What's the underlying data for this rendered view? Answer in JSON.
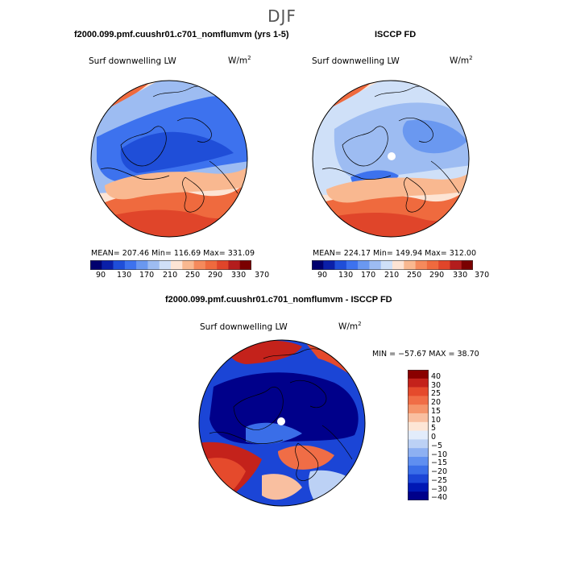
{
  "page": {
    "season": "DJF"
  },
  "panels": [
    {
      "id": "model",
      "title": "f2000.099.pmf.cuushr01.c701_nomflumvm (yrs 1-5)",
      "field": "Surf downwelling LW",
      "units": "W/m",
      "units_sup": "2",
      "stats": "MEAN= 207.46   Min= 116.69   Max= 331.09",
      "colorbar_labels": [
        "90",
        "130",
        "170",
        "210",
        "250",
        "290",
        "330",
        "370"
      ]
    },
    {
      "id": "obs",
      "title": "ISCCP FD",
      "field": "Surf downwelling LW",
      "units": "W/m",
      "units_sup": "2",
      "stats": "MEAN= 224.17   Min= 149.94   Max= 312.00",
      "colorbar_labels": [
        "90",
        "130",
        "170",
        "210",
        "250",
        "290",
        "330",
        "370"
      ]
    }
  ],
  "diff": {
    "title": "f2000.099.pmf.cuushr01.c701_nomflumvm - ISCCP FD",
    "field": "Surf downwelling LW",
    "units": "W/m",
    "units_sup": "2",
    "stats": "MIN = −57.67  MAX =   38.70",
    "colorbar_labels": [
      "40",
      "30",
      "25",
      "20",
      "15",
      "10",
      "5",
      "0",
      "−5",
      "−10",
      "−15",
      "−20",
      "−25",
      "−30",
      "−40"
    ]
  },
  "colors": {
    "abs_scale": [
      "#00006e",
      "#0a1fa8",
      "#1f4ed8",
      "#3d72ee",
      "#6a98f0",
      "#9dbcf2",
      "#cfe0f8",
      "#fde4d4",
      "#f9b890",
      "#f58a5c",
      "#ef6a3e",
      "#e0452a",
      "#b31d1d",
      "#7a0000"
    ],
    "diff_scale": [
      "#00008a",
      "#0018b4",
      "#1b45d6",
      "#3a6ee8",
      "#5f8ff0",
      "#8db0f2",
      "#bcd1f5",
      "#e2ecfb",
      "#fde6d6",
      "#f9bfa0",
      "#f5946a",
      "#f06d46",
      "#e54a2c",
      "#c4221b",
      "#8a0000"
    ],
    "coast": "#000000"
  }
}
